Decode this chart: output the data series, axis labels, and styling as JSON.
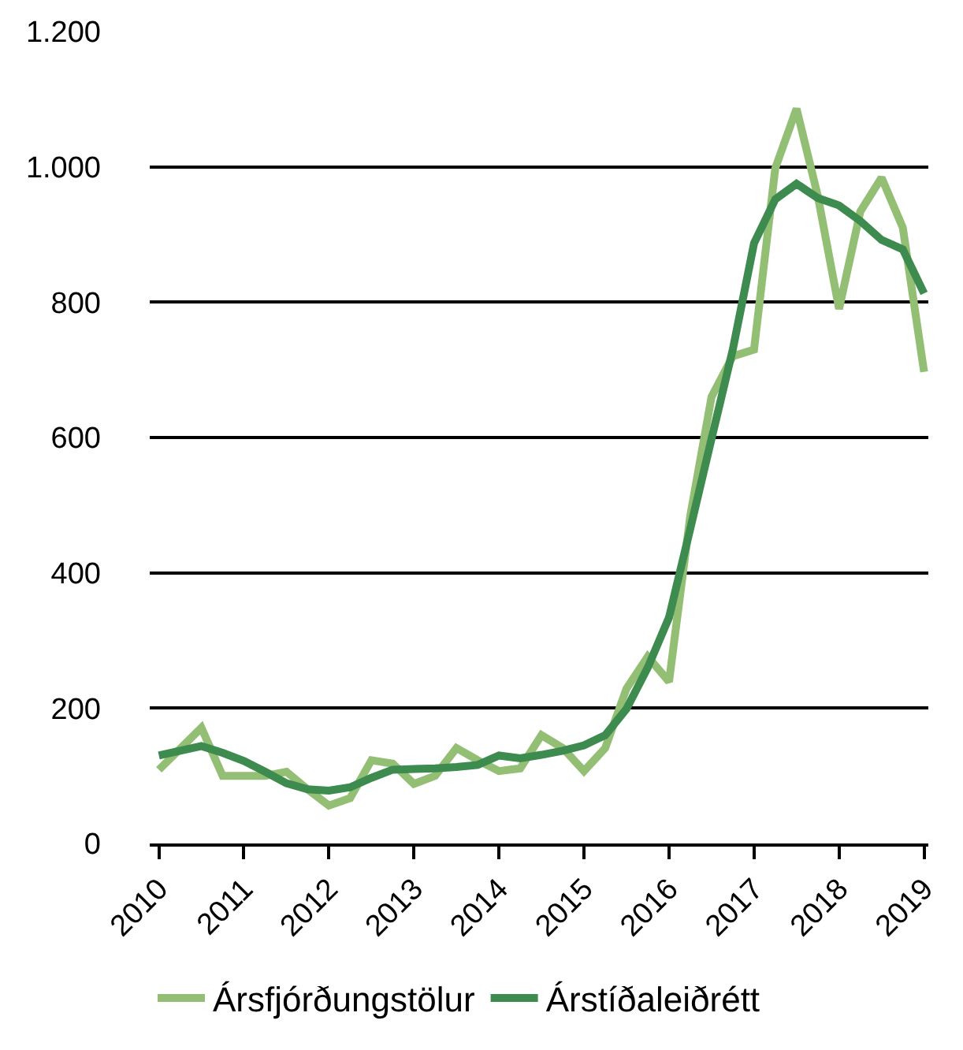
{
  "chart_data": {
    "type": "line",
    "categories": [
      "2010",
      null,
      null,
      null,
      "2011",
      null,
      null,
      null,
      "2012",
      null,
      null,
      null,
      "2013",
      null,
      null,
      null,
      "2014",
      null,
      null,
      null,
      "2015",
      null,
      null,
      null,
      "2016",
      null,
      null,
      null,
      "2017",
      null,
      null,
      null,
      "2018",
      null,
      null,
      null,
      "2019"
    ],
    "series": [
      {
        "name": "Ársfjórðungstölur",
        "color": "#93bf74",
        "values": [
          109,
          140,
          171,
          100,
          100,
          100,
          106,
          80,
          56,
          67,
          123,
          118,
          88,
          100,
          141,
          123,
          107,
          111,
          160,
          141,
          107,
          141,
          229,
          276,
          239,
          484,
          660,
          720,
          730,
          998,
          1086,
          957,
          790,
          934,
          984,
          910,
          697
        ]
      },
      {
        "name": "Árstíðaleiðrétt",
        "color": "#3d8b4e",
        "values": [
          130,
          137,
          144,
          134,
          122,
          106,
          89,
          80,
          78,
          83,
          97,
          109,
          110,
          111,
          113,
          116,
          130,
          126,
          131,
          137,
          145,
          160,
          199,
          260,
          334,
          465,
          598,
          730,
          887,
          952,
          975,
          954,
          943,
          920,
          892,
          878,
          813
        ]
      }
    ],
    "ylim": [
      0,
      1200
    ],
    "yticks": [
      0,
      200,
      400,
      600,
      800,
      {
        "value": 1000,
        "label": "1.000"
      },
      {
        "value": 1200,
        "label": "1.200"
      }
    ],
    "grid": "y",
    "legend": "bottom",
    "marker": "none",
    "line_style": "solid"
  }
}
